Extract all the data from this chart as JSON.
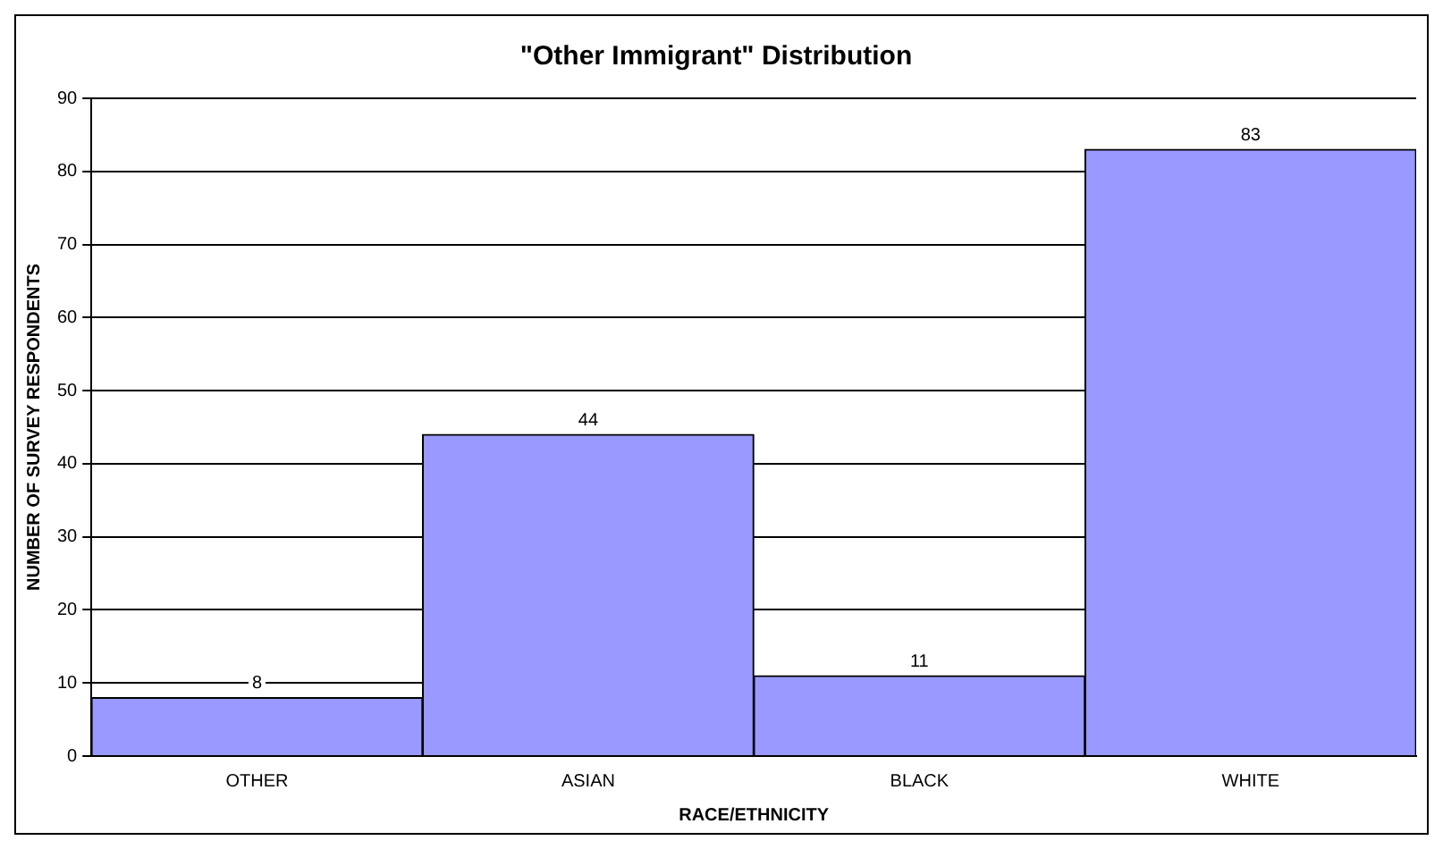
{
  "chart_data": {
    "type": "bar",
    "title": "\"Other Immigrant\" Distribution",
    "xlabel": "RACE/ETHNICITY",
    "ylabel": "NUMBER OF SURVEY RESPONDENTS",
    "categories": [
      "OTHER",
      "ASIAN",
      "BLACK",
      "WHITE"
    ],
    "values": [
      8,
      44,
      11,
      83
    ],
    "color": "#9999ff",
    "ylim": [
      0,
      90
    ],
    "yticks": [
      0,
      10,
      20,
      30,
      40,
      50,
      60,
      70,
      80,
      90
    ],
    "grid": "y",
    "legend": false,
    "data_labels": true
  }
}
